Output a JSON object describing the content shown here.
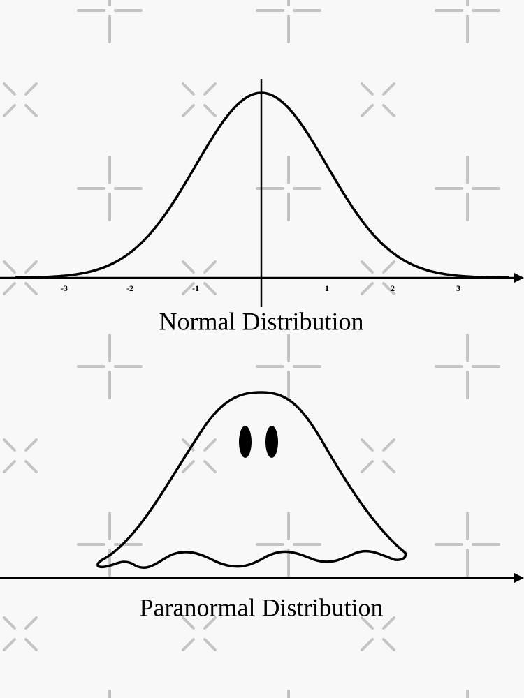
{
  "normal": {
    "ticks": [
      -3,
      -2,
      -1,
      1,
      2,
      3
    ],
    "caption": "Normal Distribution"
  },
  "paranormal": {
    "caption": "Paranormal Distribution"
  }
}
